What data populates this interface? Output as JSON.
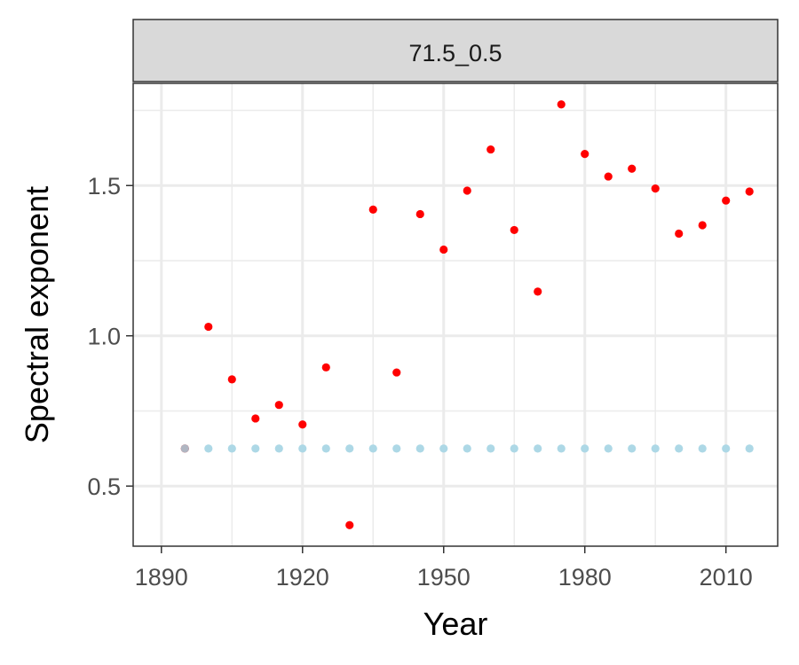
{
  "chart_data": {
    "type": "scatter",
    "facet_label": "71.5_0.5",
    "xlabel": "Year",
    "ylabel": "Spectral exponent",
    "xlim": [
      1884,
      2021
    ],
    "ylim": [
      0.3,
      1.84
    ],
    "x_ticks": [
      1890,
      1920,
      1950,
      1980,
      2010
    ],
    "x_minor_ticks": [
      1905,
      1935,
      1965,
      1995
    ],
    "y_ticks": [
      0.5,
      1.0,
      1.5
    ],
    "y_tick_labels": [
      "0.5",
      "1.0",
      "1.5"
    ],
    "y_minor_ticks": [
      0.75,
      1.25,
      1.75
    ],
    "grid": true,
    "series": [
      {
        "color": "#ff0000",
        "x": [
          1895,
          1900,
          1905,
          1910,
          1915,
          1920,
          1925,
          1930,
          1935,
          1940,
          1945,
          1950,
          1955,
          1960,
          1965,
          1970,
          1975,
          1980,
          1985,
          1990,
          1995,
          2000,
          2005,
          2010,
          2015
        ],
        "y": [
          0.625,
          1.03,
          0.855,
          0.725,
          0.77,
          0.705,
          0.895,
          0.37,
          1.42,
          0.878,
          1.405,
          1.287,
          1.483,
          1.62,
          1.352,
          1.147,
          1.77,
          1.605,
          1.53,
          1.556,
          1.49,
          1.34,
          1.368,
          1.45,
          1.48
        ]
      },
      {
        "color": "#add8e6",
        "x": [
          1895,
          1900,
          1905,
          1910,
          1915,
          1920,
          1925,
          1930,
          1935,
          1940,
          1945,
          1950,
          1955,
          1960,
          1965,
          1970,
          1975,
          1980,
          1985,
          1990,
          1995,
          2000,
          2005,
          2010,
          2015
        ],
        "y": [
          0.625,
          0.625,
          0.625,
          0.625,
          0.625,
          0.625,
          0.625,
          0.625,
          0.625,
          0.625,
          0.625,
          0.625,
          0.625,
          0.625,
          0.625,
          0.625,
          0.625,
          0.625,
          0.625,
          0.625,
          0.625,
          0.625,
          0.625,
          0.625,
          0.625
        ]
      }
    ]
  }
}
